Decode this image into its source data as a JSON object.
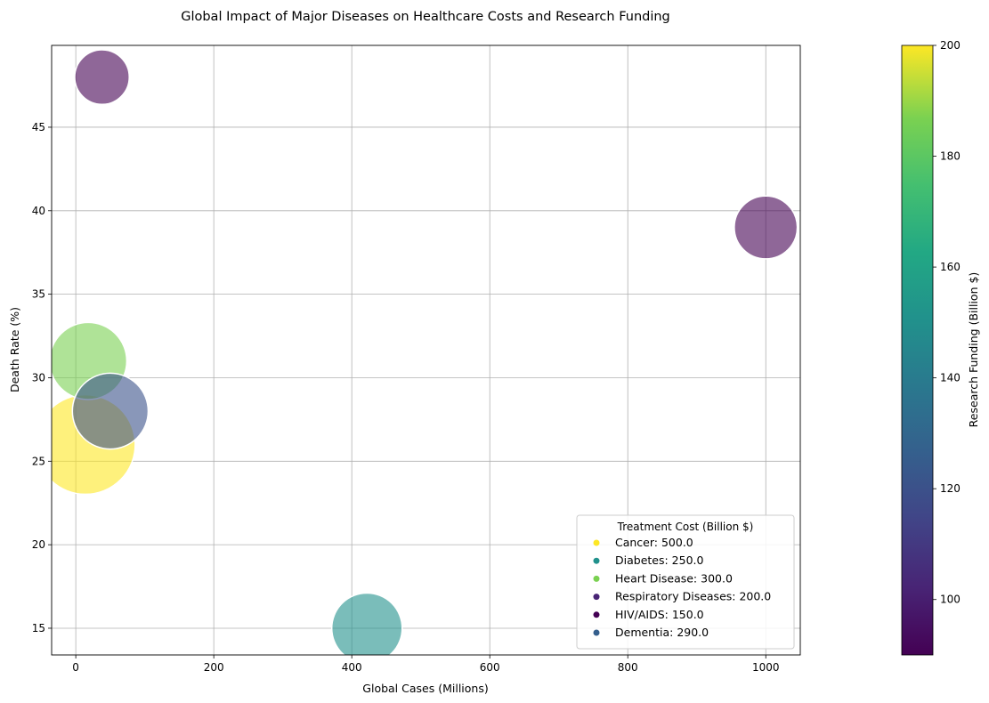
{
  "chart_data": {
    "type": "scatter",
    "title": "Global Impact of Major Diseases on Healthcare Costs and Research Funding",
    "xlabel": "Global Cases (Millions)",
    "ylabel": "Death Rate (%)",
    "xlim": [
      -35,
      1050
    ],
    "ylim": [
      13.4,
      49.9
    ],
    "xticks": [
      0,
      200,
      400,
      600,
      800,
      1000
    ],
    "yticks": [
      15,
      20,
      25,
      30,
      35,
      40,
      45
    ],
    "grid": true,
    "size_encoding": "Treatment Cost (Billion $)",
    "color_encoding": "Research Funding (Billion $)",
    "colorbar": {
      "label": "Research Funding (Billion $)",
      "range": [
        90,
        200
      ],
      "ticks": [
        100,
        120,
        140,
        160,
        180,
        200
      ],
      "colormap": "viridis"
    },
    "legend": {
      "title": "Treatment Cost (Billion $)",
      "position": "lower-right"
    },
    "points": [
      {
        "name": "Cancer",
        "x": 14,
        "y": 26,
        "treatment_cost": 500.0,
        "research_funding": 200,
        "color": "#fde725",
        "legend_label": "Cancer: 500.0"
      },
      {
        "name": "Diabetes",
        "x": 422,
        "y": 15,
        "treatment_cost": 250.0,
        "research_funding": 150,
        "color": "#21918c",
        "legend_label": "Diabetes: 250.0"
      },
      {
        "name": "Heart Disease",
        "x": 18,
        "y": 31,
        "treatment_cost": 300.0,
        "research_funding": 180,
        "color": "#7ad151",
        "legend_label": "Heart Disease: 300.0"
      },
      {
        "name": "Respiratory Diseases",
        "x": 1000,
        "y": 39,
        "treatment_cost": 200.0,
        "research_funding": 100,
        "color": "#440154",
        "legend_label": "Respiratory Diseases: 200.0"
      },
      {
        "name": "HIV/AIDS",
        "x": 38,
        "y": 48,
        "treatment_cost": 150.0,
        "research_funding": 90,
        "color": "#440154",
        "legend_label": "HIV/AIDS: 150.0"
      },
      {
        "name": "Dementia",
        "x": 50,
        "y": 28,
        "treatment_cost": 290.0,
        "research_funding": 120,
        "color": "#3b528b",
        "legend_label": "Dementia: 290.0"
      }
    ],
    "legend_marker_colors": [
      "#fde725",
      "#21918c",
      "#7ad151",
      "#482475",
      "#440154",
      "#355f8d"
    ]
  }
}
